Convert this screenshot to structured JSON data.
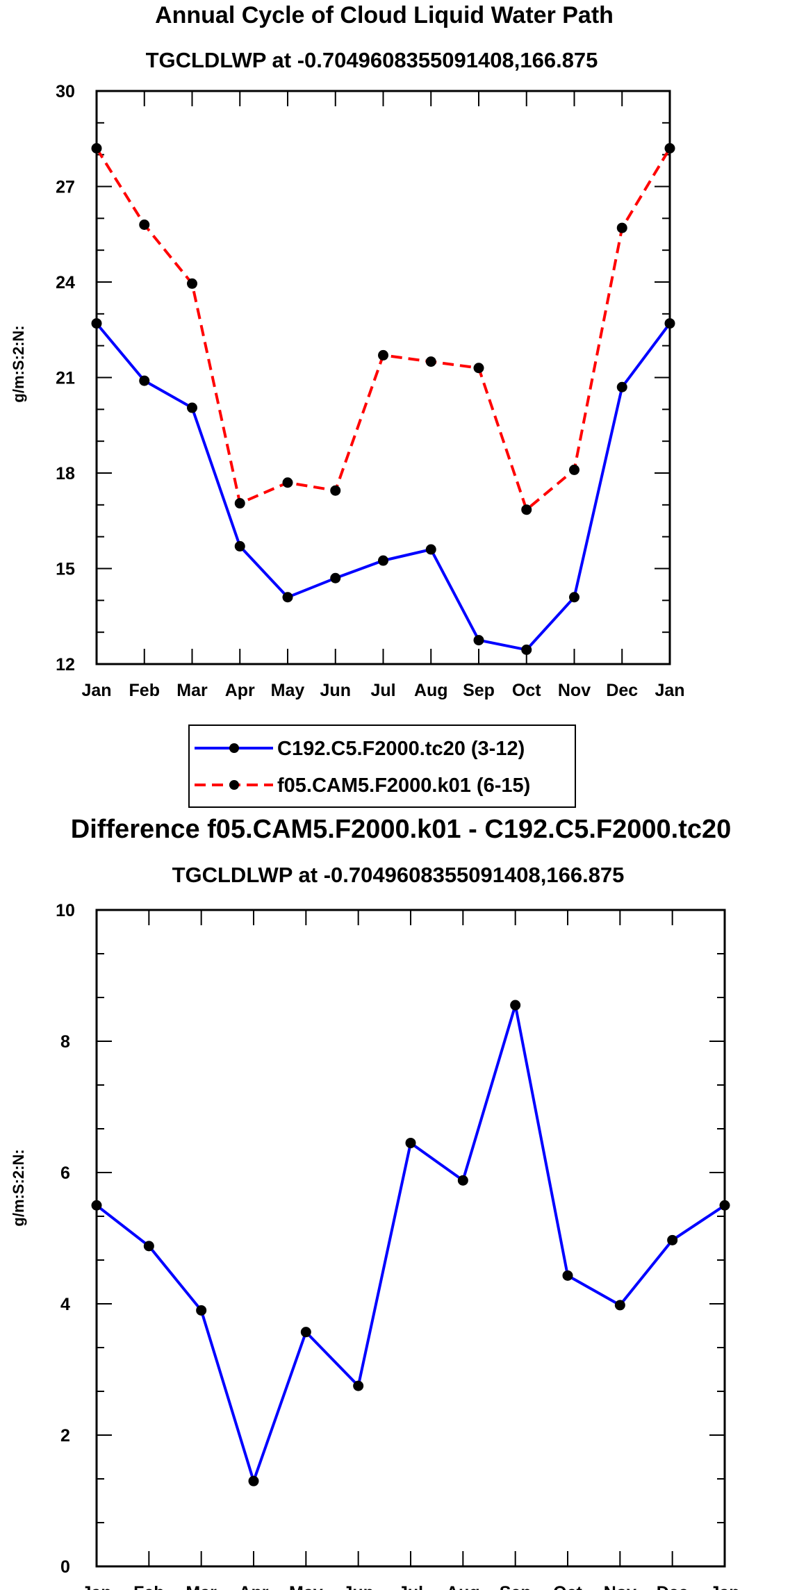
{
  "chart_data": [
    {
      "type": "line",
      "title": "Annual Cycle of Cloud Liquid Water Path",
      "subtitle": "TGCLDLWP at -0.7049608355091408,166.875",
      "ylabel": "g/m:S:2:N:",
      "xlabel": "",
      "categories": [
        "Jan",
        "Feb",
        "Mar",
        "Apr",
        "May",
        "Jun",
        "Jul",
        "Aug",
        "Sep",
        "Oct",
        "Nov",
        "Dec",
        "Jan"
      ],
      "ylim": [
        12,
        30
      ],
      "yticks": [
        12,
        15,
        18,
        21,
        24,
        27,
        30
      ],
      "series": [
        {
          "name": "C192.C5.F2000.tc20 (3-12)",
          "color": "#0000ff",
          "dash": "solid",
          "values": [
            22.7,
            20.9,
            20.05,
            15.7,
            14.1,
            14.7,
            15.25,
            15.6,
            12.75,
            12.45,
            14.1,
            20.7,
            22.7
          ]
        },
        {
          "name": "f05.CAM5.F2000.k01 (6-15)",
          "color": "#ff0000",
          "dash": "dashed",
          "values": [
            28.2,
            25.8,
            23.95,
            17.05,
            17.7,
            17.45,
            21.7,
            21.5,
            21.3,
            16.85,
            18.1,
            25.7,
            28.2
          ]
        }
      ],
      "legend_position": "bottom-center"
    },
    {
      "type": "line",
      "title": "Difference f05.CAM5.F2000.k01 - C192.C5.F2000.tc20",
      "subtitle": "TGCLDLWP at -0.7049608355091408,166.875",
      "ylabel": "g/m:S:2:N:",
      "xlabel": "",
      "categories": [
        "Jan",
        "Feb",
        "Mar",
        "Apr",
        "May",
        "Jun",
        "Jul",
        "Aug",
        "Sep",
        "Oct",
        "Nov",
        "Dec",
        "Jan"
      ],
      "ylim": [
        0,
        10
      ],
      "yticks": [
        0,
        2,
        4,
        6,
        8,
        10
      ],
      "series": [
        {
          "name": "Difference",
          "color": "#0000ff",
          "dash": "solid",
          "values": [
            5.5,
            4.88,
            3.9,
            1.3,
            3.57,
            2.75,
            6.45,
            5.88,
            8.55,
            4.43,
            3.98,
            4.97,
            5.5
          ]
        }
      ]
    }
  ]
}
